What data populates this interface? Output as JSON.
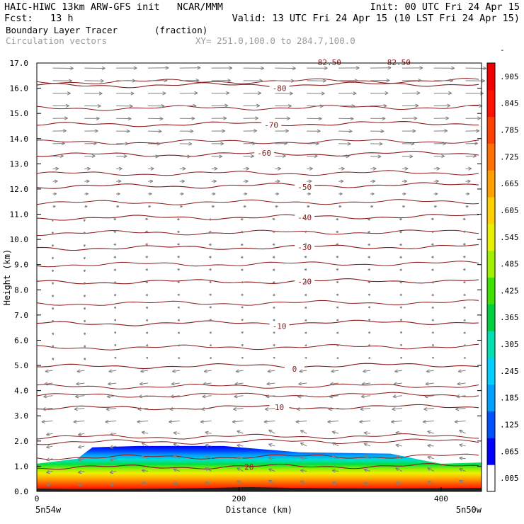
{
  "header": {
    "title_left": "HAIC-HIWC 13km ARW-GFS init   NCAR/MMM",
    "init": "Init: 00 UTC Fri 24 Apr 15",
    "fcst": "Fcst:   13 h",
    "valid": "Valid: 13 UTC Fri 24 Apr 15 (10 LST Fri 24 Apr 15)",
    "field": "Boundary Layer Tracer",
    "units": "(fraction)",
    "vectors": "Circulation vectors",
    "xy": "XY= 251.0,100.0 to 284.7,100.0"
  },
  "colors": {
    "contour": "#8b1a1a",
    "vector": "#7f7f7f",
    "ramp": [
      "#ffffff",
      "#0000ff",
      "#0050ff",
      "#00a0ff",
      "#00d0ff",
      "#00e0b0",
      "#00d040",
      "#40e000",
      "#a0f000",
      "#e8f000",
      "#ffd000",
      "#ffa000",
      "#ff7000",
      "#ff4000",
      "#ff1000",
      "#f00000"
    ]
  },
  "chart_data": {
    "type": "heatmap",
    "xlabel": "Distance (km)",
    "ylabel": "Height (km)",
    "xlim": [
      0,
      440
    ],
    "ylim": [
      0,
      17
    ],
    "xticks": [
      "0",
      "200",
      "400"
    ],
    "yticks": [
      "0.0",
      "1.0",
      "2.0",
      "3.0",
      "4.0",
      "5.0",
      "6.0",
      "7.0",
      "8.0",
      "9.0",
      "10.0",
      "11.0",
      "12.0",
      "13.0",
      "14.0",
      "15.0",
      "16.0",
      "17.0"
    ],
    "endpoints": [
      "5n54w",
      "5n50w"
    ],
    "colorbar_labels": [
      ".005",
      ".065",
      ".125",
      ".185",
      ".245",
      ".305",
      ".365",
      ".425",
      ".485",
      ".545",
      ".605",
      ".665",
      ".725",
      ".785",
      ".845",
      ".905",
      "-"
    ],
    "tracer_top_km": [
      {
        "x": 0,
        "y": 1.1
      },
      {
        "x": 40,
        "y": 1.3
      },
      {
        "x": 55,
        "y": 1.75
      },
      {
        "x": 100,
        "y": 1.8
      },
      {
        "x": 160,
        "y": 1.8
      },
      {
        "x": 185,
        "y": 1.8
      },
      {
        "x": 260,
        "y": 1.55
      },
      {
        "x": 350,
        "y": 1.5
      },
      {
        "x": 380,
        "y": 1.25
      },
      {
        "x": 400,
        "y": 1.1
      },
      {
        "x": 440,
        "y": 1.15
      }
    ],
    "isotherms": [
      {
        "label": "20",
        "y": 0.95,
        "label_x": 210
      },
      {
        "label": "10",
        "y": 3.3,
        "label_x": 240
      },
      {
        "label": "0",
        "y": 4.95,
        "label_x": 255
      },
      {
        "label": "-10",
        "y": 6.65,
        "label_x": 240
      },
      {
        "label": "-20",
        "y": 8.3,
        "label_x": 265
      },
      {
        "label": "-30",
        "y": 9.65,
        "label_x": 265
      },
      {
        "label": "-40",
        "y": 10.85,
        "label_x": 265
      },
      {
        "label": "-50",
        "y": 12.1,
        "label_x": 265
      },
      {
        "label": "-60",
        "y": 13.35,
        "label_x": 225
      },
      {
        "label": "-70",
        "y": 14.55,
        "label_x": 232
      },
      {
        "label": "-80",
        "y": 16.1,
        "label_x": 240
      }
    ],
    "clipped_top_labels": [
      "-82.50",
      "-82.50"
    ]
  }
}
